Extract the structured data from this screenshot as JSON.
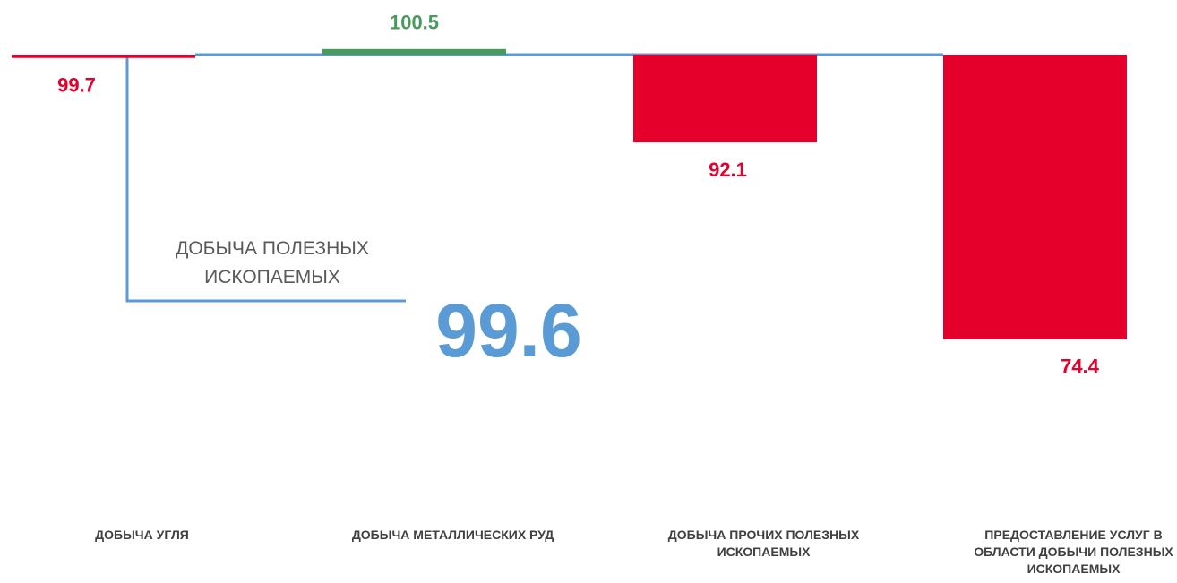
{
  "chart_data": {
    "type": "bar",
    "categories": [
      "ДОБЫЧА УГЛЯ",
      "ДОБЫЧА МЕТАЛЛИЧЕСКИХ РУД",
      "ДОБЫЧА ПРОЧИХ ПОЛЕЗНЫХ ИСКОПАЕМЫХ",
      "ПРЕДОСТАВЛЕНИЕ УСЛУГ В ОБЛАСТИ ДОБЫЧИ ПОЛЕЗНЫХ ИСКОПАЕМЫХ"
    ],
    "values": [
      99.7,
      100.5,
      92.1,
      74.4
    ],
    "base": 100,
    "ylim": [
      73,
      101
    ],
    "up_color": "#4a9a5e",
    "down_color": "#e4002b",
    "total_color": "#5b9bd5",
    "total": {
      "label": "ДОБЫЧА ПОЛЕЗНЫХ ИСКОПАЕМЫХ",
      "value": 99.6
    }
  }
}
